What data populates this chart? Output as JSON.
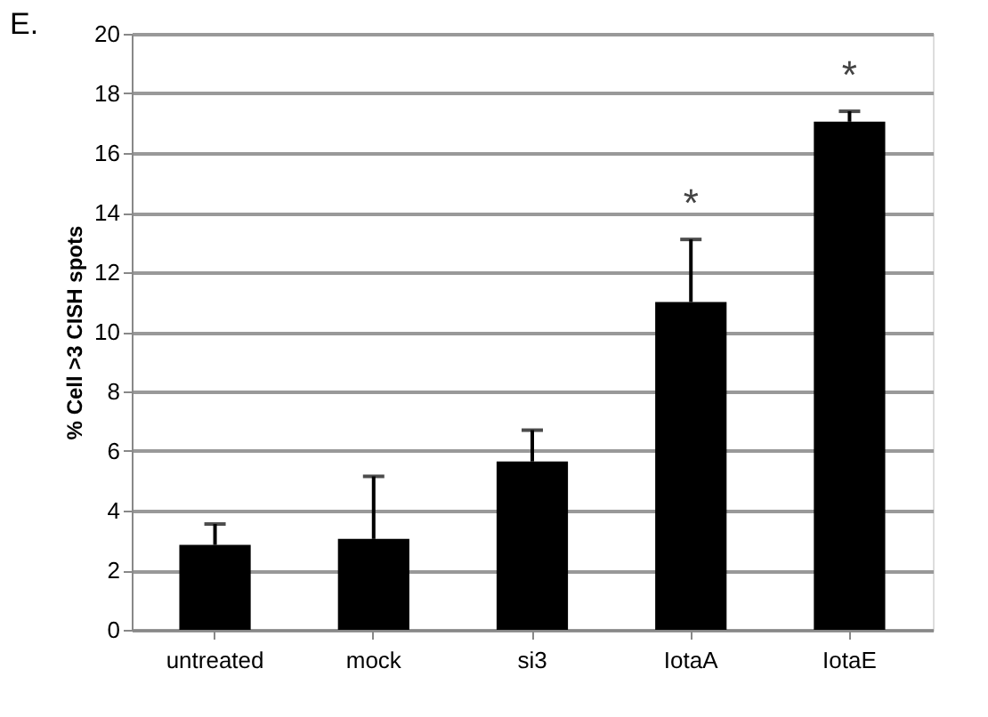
{
  "chart_data": {
    "type": "bar",
    "title": "E.",
    "ylabel": "% Cell >3 CISH spots",
    "categories": [
      "untreated",
      "mock",
      "si3",
      "IotaA",
      "IotaE"
    ],
    "values": [
      2.85,
      3.05,
      5.65,
      11.0,
      17.05
    ],
    "errors": [
      [
        2.85,
        3.55
      ],
      [
        3.05,
        5.15
      ],
      [
        5.65,
        6.7
      ],
      [
        11.0,
        13.1
      ],
      [
        17.05,
        17.4
      ]
    ],
    "color": "#000000",
    "ylim": [
      0,
      20
    ],
    "yticks": [
      0,
      2,
      4,
      6,
      8,
      10,
      12,
      14,
      16,
      18,
      20
    ],
    "grid": "y",
    "annotations": [
      "*",
      "*"
    ]
  }
}
